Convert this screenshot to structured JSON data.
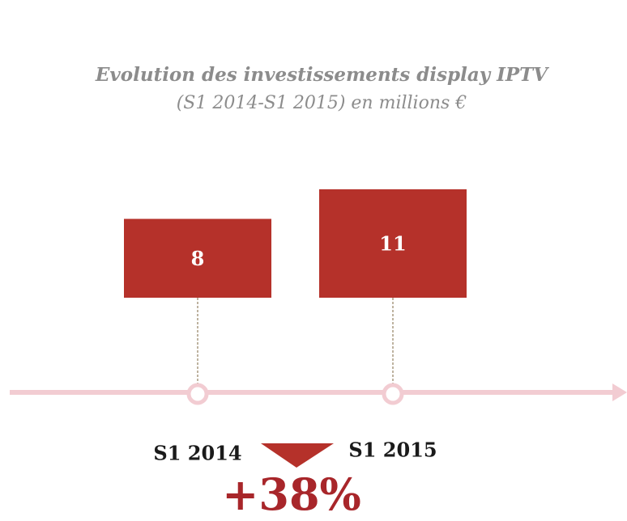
{
  "chart_data": {
    "type": "bar",
    "title": "Evolution des investissements display IPTV",
    "subtitle": "(S1 2014-S1 2015) en millions €",
    "categories": [
      "S1 2014",
      "S1 2015"
    ],
    "values": [
      8,
      11
    ],
    "color": "#b5312a",
    "ylim": [
      0,
      11
    ],
    "annotation": "+38%"
  }
}
